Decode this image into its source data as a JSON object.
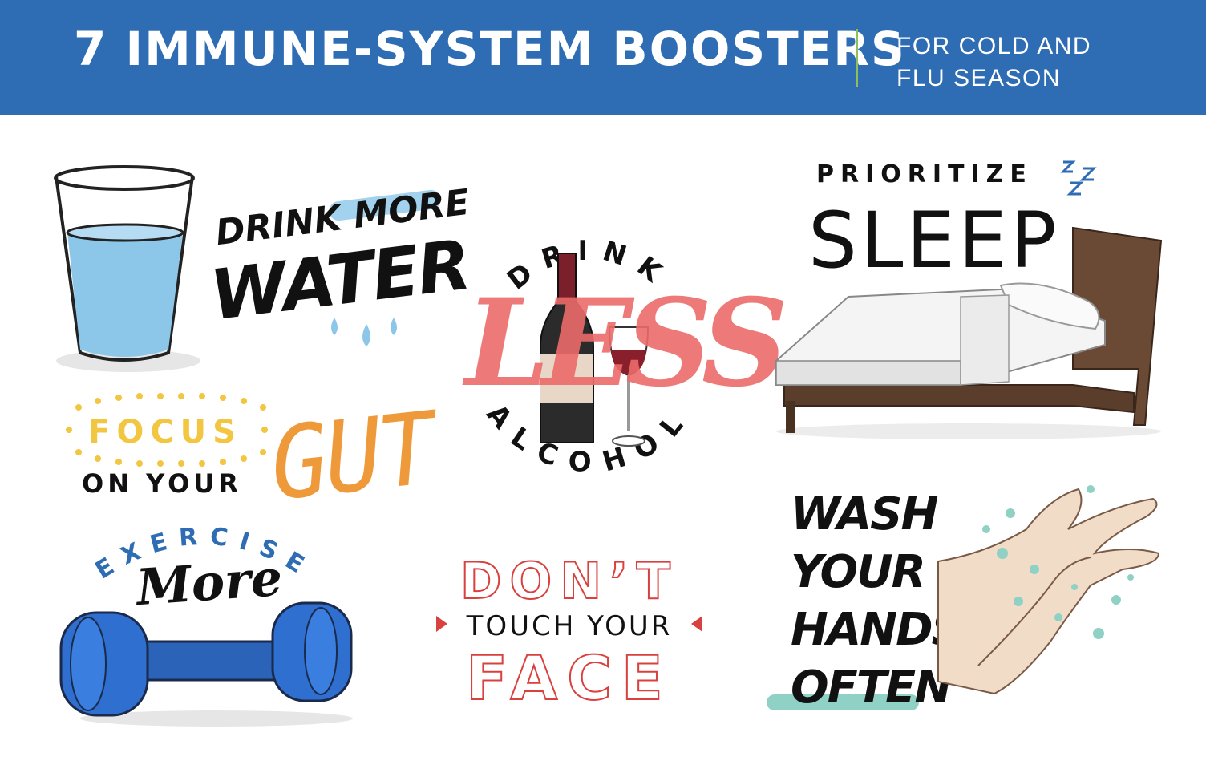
{
  "header": {
    "title": "7 IMMUNE-SYSTEM BOOSTERS",
    "subtitle_line1": "FOR COLD AND",
    "subtitle_line2": "FLU SEASON"
  },
  "tips": {
    "water": {
      "line1a": "DRINK",
      "line1b": "MORE",
      "line2": "WATER"
    },
    "gut": {
      "focus": "FOCUS",
      "on_your": "ON YOUR",
      "gut": "GUT"
    },
    "exercise": {
      "arc": "EXERCISE",
      "more": "More"
    },
    "alcohol": {
      "top": "DRINK",
      "middle": "LESS",
      "bottom": "ALCOHOL"
    },
    "face": {
      "line1": "DON’T",
      "line2": "TOUCH YOUR",
      "line3": "FACE"
    },
    "sleep": {
      "line1": "PRIORITIZE",
      "line2": "SLEEP",
      "zzz": "ZZZ"
    },
    "hands": {
      "line1": "WASH",
      "line2": "YOUR",
      "line3": "HANDS",
      "line4": "OFTEN"
    }
  },
  "colors": {
    "banner": "#2e6db4",
    "accent_green": "#8fbf5a",
    "water_blue": "#8cc7ea",
    "gut_yellow": "#f2c640",
    "gut_orange": "#ef9a3a",
    "exercise_blue": "#2e6db4",
    "less_red": "#ec6b6b",
    "face_red": "#d9413e",
    "teal": "#8fd1c4"
  },
  "icons": [
    "water-glass-icon",
    "wine-bottle-icon",
    "wine-glass-icon",
    "bed-icon",
    "dumbbell-icon",
    "hands-icon",
    "water-drops-icon",
    "sleep-zzz-icon"
  ]
}
